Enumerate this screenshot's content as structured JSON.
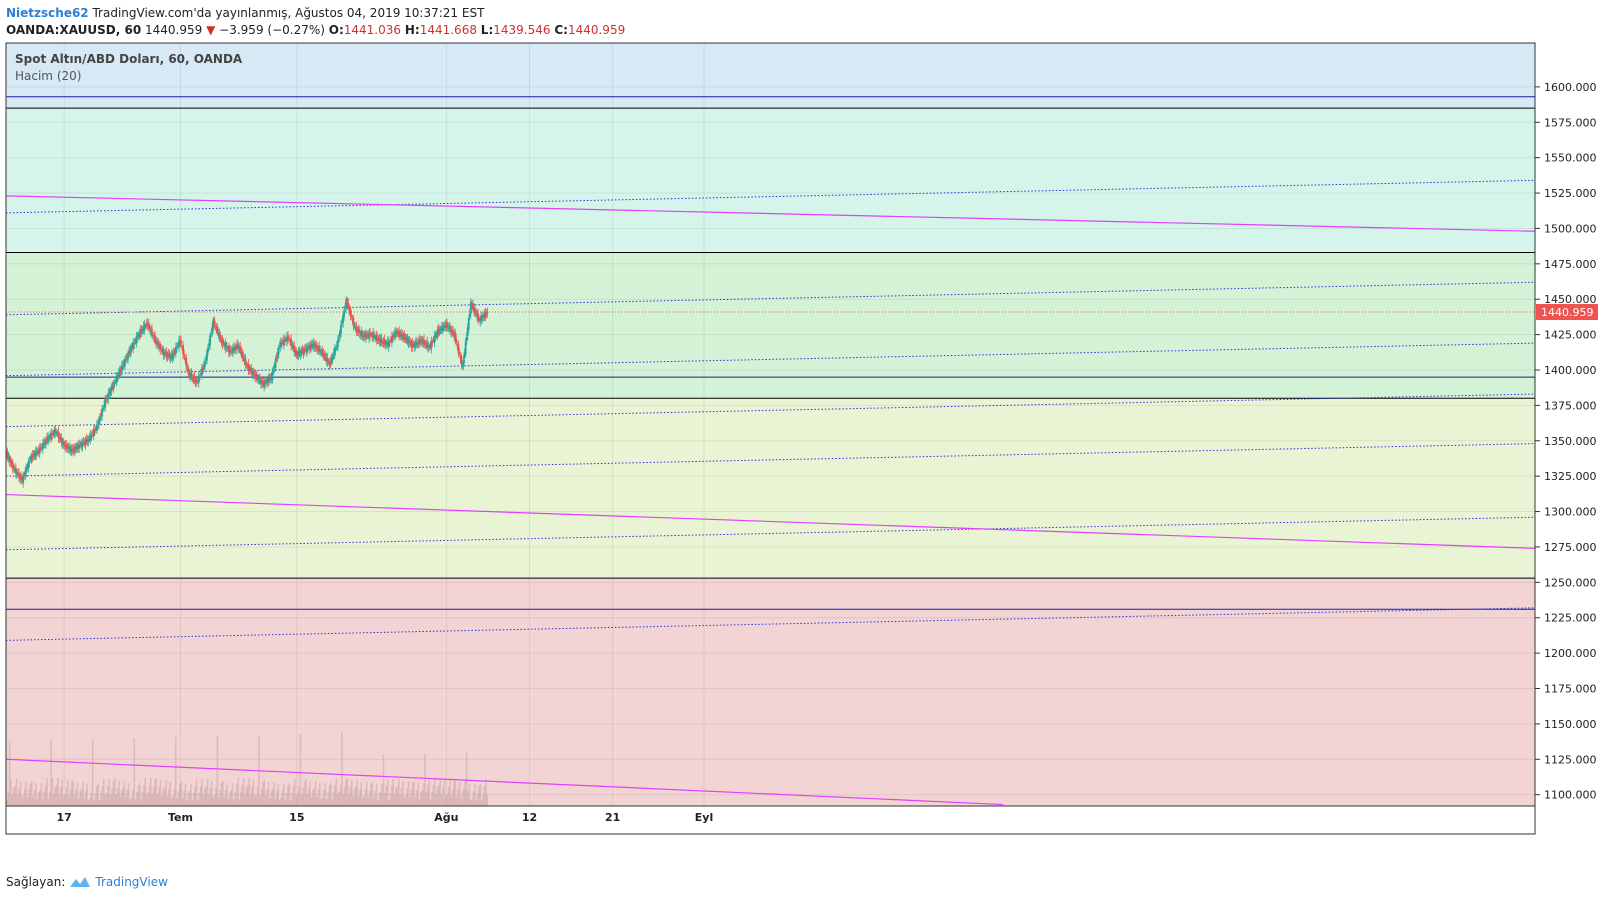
{
  "header": {
    "user": "Nietzsche62",
    "published": "TradingView.com'da yayınlanmış, Ağustos 04, 2019 10:37:21 EST",
    "symbol": "OANDA:XAUUSD, 60",
    "last": "1440.959",
    "change": "−3.959 (−0.27%)",
    "o_label": "O:",
    "o": "1441.036",
    "h_label": "H:",
    "h": "1441.668",
    "l_label": "L:",
    "l": "1439.546",
    "c_label": "C:",
    "c": "1440.959"
  },
  "legend": {
    "title": "Spot Altın/ABD Doları, 60, OANDA",
    "volume": "Hacim (20)"
  },
  "footer": {
    "prefix": "Sağlayan:",
    "brand": "TradingView"
  },
  "colors": {
    "band_top": "#d6e9f5",
    "band_mint": "#d6f5ea",
    "band_green": "#d4f2d6",
    "band_yellow": "#e8f4d4",
    "band_red": "#f3d4d4",
    "up": "#26a69a",
    "down": "#ef5350",
    "channel": "#3030d8",
    "trend": "#e040fb",
    "price_tag": "#ef5350"
  },
  "chart_data": {
    "type": "candlestick",
    "price_axis": {
      "ticks": [
        1100,
        1125,
        1150,
        1175,
        1200,
        1225,
        1250,
        1275,
        1300,
        1325,
        1350,
        1375,
        1400,
        1425,
        1450,
        1475,
        1500,
        1525,
        1550,
        1575,
        1600
      ],
      "tick_labels": [
        "1100.000",
        "1125.000",
        "1150.000",
        "1175.000",
        "1200.000",
        "1225.000",
        "1250.000",
        "1275.000",
        "1300.000",
        "1325.000",
        "1350.000",
        "1375.000",
        "1400.000",
        "1425.000",
        "1450.000",
        "1475.000",
        "1500.000",
        "1525.000",
        "1550.000",
        "1575.000",
        "1600.000"
      ],
      "range": [
        1092,
        1631
      ],
      "last_price_label": "1440.959",
      "last_price": 1440.959
    },
    "time_axis": {
      "ticks": [
        {
          "label": "17",
          "day": 0
        },
        {
          "label": "Tem",
          "day": 14
        },
        {
          "label": "15",
          "day": 28
        },
        {
          "label": "Ağu",
          "day": 46
        },
        {
          "label": "12",
          "day": 56
        },
        {
          "label": "21",
          "day": 66
        },
        {
          "label": "Eyl",
          "day": 77
        }
      ],
      "range_days": [
        -7,
        177
      ]
    },
    "zones": [
      {
        "from": 1585,
        "to": 1631,
        "color": "band_top"
      },
      {
        "from": 1483,
        "to": 1585,
        "color": "band_mint"
      },
      {
        "from": 1380,
        "to": 1483,
        "color": "band_green"
      },
      {
        "from": 1253,
        "to": 1380,
        "color": "band_yellow"
      },
      {
        "from": 1092,
        "to": 1253,
        "color": "band_red"
      }
    ],
    "horizontal_lines": [
      {
        "price": 1593,
        "color": "#1a1aaa"
      },
      {
        "price": 1585,
        "color": "#000000"
      },
      {
        "price": 1483,
        "color": "#000000"
      },
      {
        "price": 1395,
        "color": "#1a1aaa"
      },
      {
        "price": 1380,
        "color": "#000000"
      },
      {
        "price": 1253,
        "color": "#000000"
      },
      {
        "price": 1231,
        "color": "#1a1aaa"
      }
    ],
    "dotted_channels": [
      {
        "p1": [
          -7,
          1511
        ],
        "p2": [
          177,
          1534
        ]
      },
      {
        "p1": [
          -7,
          1439
        ],
        "p2": [
          177,
          1462
        ]
      },
      {
        "p1": [
          -7,
          1396
        ],
        "p2": [
          177,
          1419
        ]
      },
      {
        "p1": [
          -7,
          1360
        ],
        "p2": [
          177,
          1383
        ]
      },
      {
        "p1": [
          -7,
          1325
        ],
        "p2": [
          177,
          1348
        ]
      },
      {
        "p1": [
          -7,
          1273
        ],
        "p2": [
          177,
          1296
        ]
      },
      {
        "p1": [
          -7,
          1209
        ],
        "p2": [
          177,
          1232
        ]
      }
    ],
    "trend_lines": [
      {
        "p1": [
          -7,
          1523
        ],
        "p2": [
          177,
          1498
        ]
      },
      {
        "p1": [
          -7,
          1312
        ],
        "p2": [
          177,
          1274
        ]
      },
      {
        "p1": [
          -7,
          1125
        ],
        "p2": [
          113,
          1093
        ]
      }
    ],
    "series": [
      {
        "name": "Spot Altın/ABD Doları",
        "points": [
          [
            -7,
            1342
          ],
          [
            -6,
            1330
          ],
          [
            -5,
            1322
          ],
          [
            -4,
            1338
          ],
          [
            -3,
            1343
          ],
          [
            -2,
            1351
          ],
          [
            -1,
            1357
          ],
          [
            0,
            1347
          ],
          [
            1,
            1343
          ],
          [
            2,
            1347
          ],
          [
            3,
            1351
          ],
          [
            4,
            1360
          ],
          [
            5,
            1378
          ],
          [
            6,
            1390
          ],
          [
            7,
            1402
          ],
          [
            8,
            1414
          ],
          [
            9,
            1425
          ],
          [
            10,
            1433
          ],
          [
            11,
            1421
          ],
          [
            12,
            1412
          ],
          [
            13,
            1409
          ],
          [
            14,
            1421
          ],
          [
            15,
            1398
          ],
          [
            16,
            1391
          ],
          [
            17,
            1405
          ],
          [
            18,
            1434
          ],
          [
            19,
            1420
          ],
          [
            20,
            1413
          ],
          [
            21,
            1417
          ],
          [
            22,
            1403
          ],
          [
            23,
            1396
          ],
          [
            24,
            1390
          ],
          [
            25,
            1395
          ],
          [
            26,
            1418
          ],
          [
            27,
            1423
          ],
          [
            28,
            1411
          ],
          [
            29,
            1414
          ],
          [
            30,
            1418
          ],
          [
            31,
            1413
          ],
          [
            32,
            1404
          ],
          [
            33,
            1420
          ],
          [
            34,
            1449
          ],
          [
            35,
            1430
          ],
          [
            36,
            1424
          ],
          [
            37,
            1425
          ],
          [
            38,
            1421
          ],
          [
            39,
            1418
          ],
          [
            40,
            1427
          ],
          [
            41,
            1423
          ],
          [
            42,
            1417
          ],
          [
            43,
            1421
          ],
          [
            44,
            1416
          ],
          [
            45,
            1427
          ],
          [
            46,
            1432
          ],
          [
            47,
            1425
          ],
          [
            48,
            1402
          ],
          [
            49,
            1447
          ],
          [
            50,
            1435
          ],
          [
            51,
            1440.959
          ]
        ]
      }
    ]
  }
}
